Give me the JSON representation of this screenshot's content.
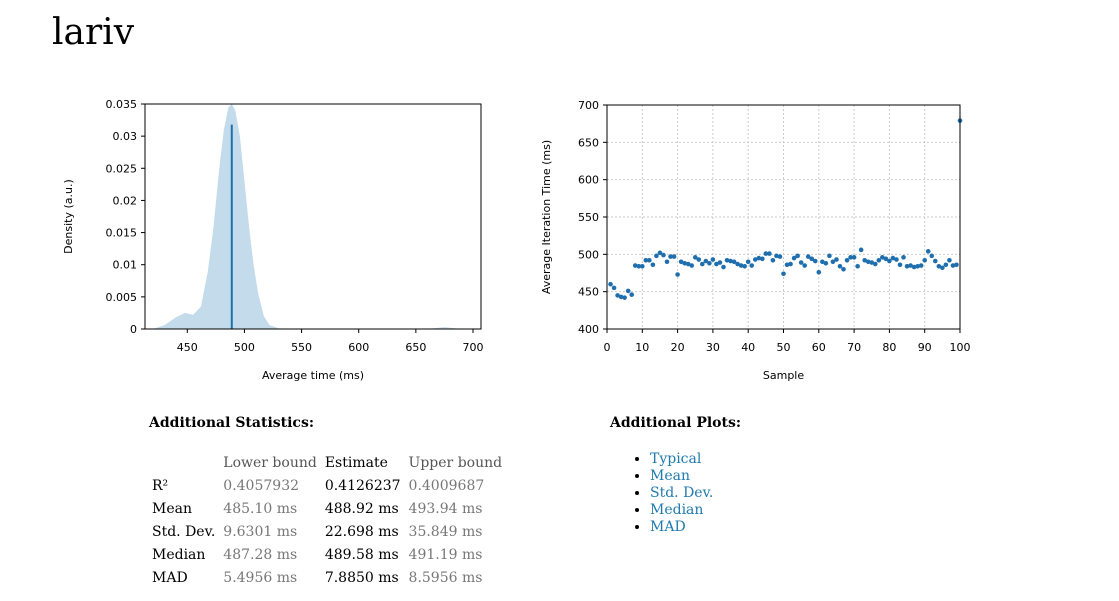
{
  "title": "lariv",
  "chart_data": [
    {
      "type": "area",
      "xlabel": "Average time (ms)",
      "ylabel": "Density (a.u.)",
      "x": [
        420,
        430,
        440,
        448,
        455,
        462,
        468,
        473,
        478,
        482,
        486,
        489,
        492,
        496,
        500,
        504,
        508,
        512,
        517,
        522,
        530,
        550,
        650,
        665,
        675,
        685,
        690
      ],
      "values": [
        0,
        0.0006,
        0.0018,
        0.0025,
        0.0022,
        0.0035,
        0.009,
        0.016,
        0.025,
        0.031,
        0.0345,
        0.035,
        0.034,
        0.03,
        0.023,
        0.016,
        0.01,
        0.0055,
        0.002,
        0.0006,
        0.0001,
        0,
        0,
        0.0001,
        0.0003,
        0.0001,
        0
      ],
      "color": "#c3dbea",
      "mean_line": {
        "x": 488.92,
        "y": 0.0318,
        "color": "#1f6fae"
      },
      "xlim": [
        413,
        707
      ],
      "ylim": [
        0,
        0.035
      ],
      "xticks": [
        450,
        500,
        550,
        600,
        650,
        700
      ],
      "yticks": [
        0,
        0.005,
        0.01,
        0.015,
        0.02,
        0.025,
        0.03,
        0.035
      ],
      "grid": false
    },
    {
      "type": "scatter",
      "xlabel": "Sample",
      "ylabel": "Average Iteration Time (ms)",
      "x": [
        1,
        2,
        3,
        4,
        5,
        6,
        7,
        8,
        9,
        10,
        11,
        12,
        13,
        14,
        15,
        16,
        17,
        18,
        19,
        20,
        21,
        22,
        23,
        24,
        25,
        26,
        27,
        28,
        29,
        30,
        31,
        32,
        33,
        34,
        35,
        36,
        37,
        38,
        39,
        40,
        41,
        42,
        43,
        44,
        45,
        46,
        47,
        48,
        49,
        50,
        51,
        52,
        53,
        54,
        55,
        56,
        57,
        58,
        59,
        60,
        61,
        62,
        63,
        64,
        65,
        66,
        67,
        68,
        69,
        70,
        71,
        72,
        73,
        74,
        75,
        76,
        77,
        78,
        79,
        80,
        81,
        82,
        83,
        84,
        85,
        86,
        87,
        88,
        89,
        90,
        91,
        92,
        93,
        94,
        95,
        96,
        97,
        98,
        99,
        100
      ],
      "values": [
        460,
        455,
        445,
        443,
        442,
        451,
        446,
        485,
        484,
        484,
        492,
        492,
        486,
        498,
        502,
        499,
        490,
        497,
        497,
        473,
        490,
        488,
        487,
        485,
        496,
        493,
        487,
        491,
        488,
        493,
        487,
        489,
        483,
        492,
        491,
        490,
        487,
        485,
        484,
        490,
        485,
        493,
        495,
        494,
        501,
        501,
        492,
        498,
        497,
        474,
        486,
        487,
        495,
        498,
        489,
        485,
        497,
        494,
        491,
        476,
        490,
        488,
        498,
        490,
        493,
        484,
        480,
        492,
        496,
        496,
        484,
        506,
        492,
        490,
        489,
        487,
        492,
        496,
        494,
        491,
        495,
        493,
        486,
        496,
        484,
        485,
        483,
        484,
        485,
        492,
        504,
        498,
        491,
        484,
        482,
        486,
        492,
        485,
        486,
        679
      ],
      "color": "#1f6fae",
      "xlim": [
        0,
        100
      ],
      "ylim": [
        400,
        700
      ],
      "xticks": [
        0,
        10,
        20,
        30,
        40,
        50,
        60,
        70,
        80,
        90,
        100
      ],
      "yticks": [
        400,
        450,
        500,
        550,
        600,
        650,
        700
      ],
      "grid": true
    }
  ],
  "statistics": {
    "title": "Additional Statistics:",
    "columns": [
      "Lower bound",
      "Estimate",
      "Upper bound"
    ],
    "rows": [
      {
        "label": "R²",
        "values": [
          "0.4057932",
          "0.4126237",
          "0.4009687"
        ]
      },
      {
        "label": "Mean",
        "values": [
          "485.10 ms",
          "488.92 ms",
          "493.94 ms"
        ]
      },
      {
        "label": "Std. Dev.",
        "values": [
          "9.6301 ms",
          "22.698 ms",
          "35.849 ms"
        ]
      },
      {
        "label": "Median",
        "values": [
          "487.28 ms",
          "489.58 ms",
          "491.19 ms"
        ]
      },
      {
        "label": "MAD",
        "values": [
          "5.4956 ms",
          "7.8850 ms",
          "8.5956 ms"
        ]
      }
    ]
  },
  "additional_plots": {
    "title": "Additional Plots:",
    "links": [
      "Typical",
      "Mean",
      "Std. Dev.",
      "Median",
      "MAD"
    ]
  }
}
